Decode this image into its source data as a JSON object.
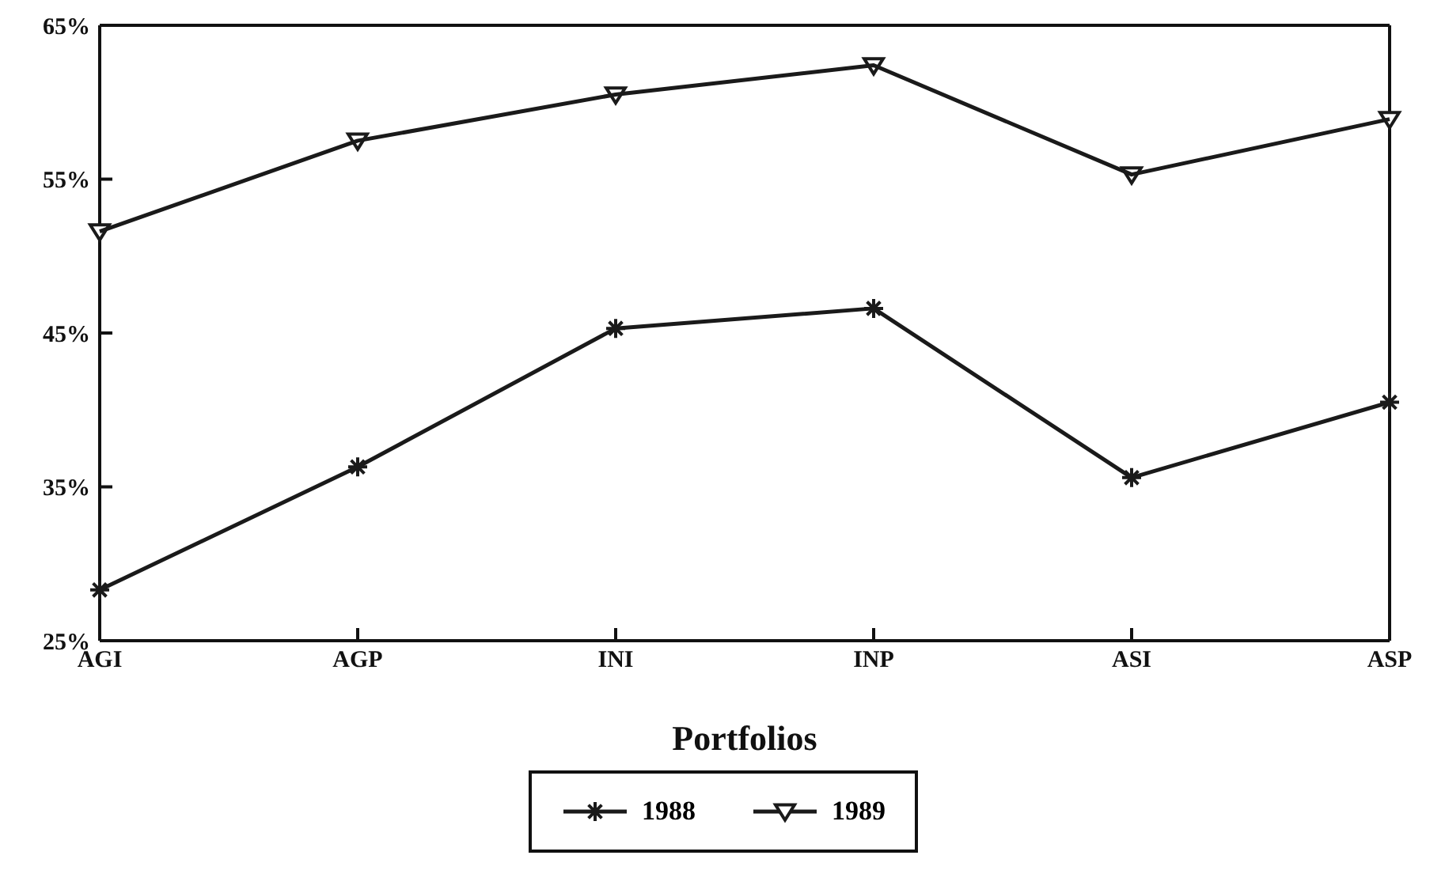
{
  "chart_data": {
    "type": "line",
    "xlabel": "Portfolios",
    "categories": [
      "AGI",
      "AGP",
      "INI",
      "INP",
      "ASI",
      "ASP"
    ],
    "series": [
      {
        "name": "1988",
        "color": "#1a1a1a",
        "marker": "cross",
        "values": [
          28.3,
          36.3,
          45.3,
          46.6,
          35.6,
          40.5
        ]
      },
      {
        "name": "1989",
        "color": "#1a1a1a",
        "marker": "triangle",
        "values": [
          51.6,
          57.5,
          60.5,
          62.4,
          55.3,
          58.9
        ]
      }
    ],
    "ylim": [
      25,
      65
    ],
    "yticks": [
      {
        "value": 25,
        "label": "25%"
      },
      {
        "value": 35,
        "label": "35%"
      },
      {
        "value": 45,
        "label": "45%"
      },
      {
        "value": 55,
        "label": "55%"
      },
      {
        "value": 65,
        "label": "65%"
      }
    ],
    "grid": false,
    "legend": "bottom",
    "line_style": "solid"
  }
}
